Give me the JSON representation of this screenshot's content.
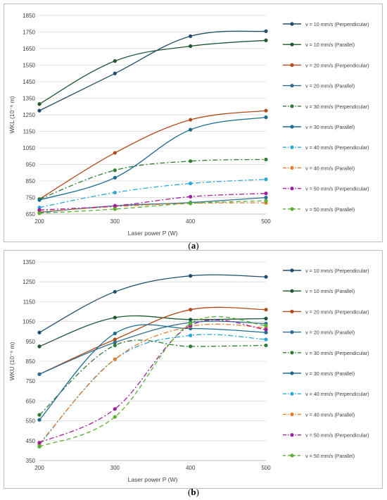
{
  "captions": {
    "a": "a",
    "b": "b"
  },
  "chart_data": [
    {
      "type": "line",
      "panel": "a",
      "title": "",
      "xlabel": "Laser power P (W)",
      "ylabel": "WKL (10⁻⁶ m)",
      "x": [
        200,
        300,
        400,
        500
      ],
      "xticks": [
        "200",
        "300",
        "400",
        "500"
      ],
      "ylim": [
        650,
        1850
      ],
      "yticks": [
        650,
        750,
        850,
        950,
        1050,
        1150,
        1250,
        1350,
        1450,
        1550,
        1650,
        1750,
        1850
      ],
      "legend_position": "right",
      "series": [
        {
          "name": "v = 10 mm/s (Perpendicular)",
          "values": [
            1275,
            1500,
            1725,
            1755
          ],
          "color": "#1f4e6b",
          "dash": "solid"
        },
        {
          "name": "v = 10 mm/s (Parallel)",
          "values": [
            1315,
            1575,
            1665,
            1700
          ],
          "color": "#1e5631",
          "dash": "solid"
        },
        {
          "name": "v = 20 mm/s (Perpendicular)",
          "values": [
            740,
            1020,
            1220,
            1275
          ],
          "color": "#b34a1b",
          "dash": "solid"
        },
        {
          "name": "v = 20 mm/s (Parallel)",
          "values": [
            660,
            700,
            720,
            750
          ],
          "color": "#2d6e8f",
          "dash": "solid"
        },
        {
          "name": "v = 30 mm/s (Perpendicular)",
          "values": [
            740,
            915,
            970,
            980
          ],
          "color": "#2e7d32",
          "dash": "dashdot"
        },
        {
          "name": "v = 30 mm/s (Parallel)",
          "values": [
            735,
            870,
            1160,
            1235
          ],
          "color": "#1b6c8f",
          "dash": "solid"
        },
        {
          "name": "v = 40 mm/s (Perpendicular)",
          "values": [
            690,
            780,
            835,
            860
          ],
          "color": "#2aa8d8",
          "dash": "dashdot"
        },
        {
          "name": "v = 40 mm/s (Parallel)",
          "values": [
            665,
            695,
            715,
            718
          ],
          "color": "#e87d2b",
          "dash": "dashdot"
        },
        {
          "name": "v = 50 mm/s (Perpendicular)",
          "values": [
            675,
            700,
            755,
            775
          ],
          "color": "#a020a0",
          "dash": "dashdot"
        },
        {
          "name": "v = 50 mm/s (Parallel)",
          "values": [
            655,
            680,
            715,
            730
          ],
          "color": "#58b030",
          "dash": "dash"
        }
      ]
    },
    {
      "type": "line",
      "panel": "b",
      "title": "",
      "xlabel": "Laser power P (W)",
      "ylabel": "WKU (10⁻⁶ m)",
      "x": [
        200,
        300,
        400,
        500
      ],
      "xticks": [
        "200",
        "300",
        "400",
        "500"
      ],
      "ylim": [
        350,
        1350
      ],
      "yticks": [
        350,
        450,
        550,
        650,
        750,
        850,
        950,
        1050,
        1150,
        1250,
        1350
      ],
      "legend_position": "right",
      "series": [
        {
          "name": "v = 10 mm/s (Perpendicular)",
          "values": [
            995,
            1200,
            1280,
            1275
          ],
          "color": "#1f4e6b",
          "dash": "solid"
        },
        {
          "name": "v = 10 mm/s (Parallel)",
          "values": [
            925,
            1070,
            1060,
            1065
          ],
          "color": "#1e5631",
          "dash": "solid"
        },
        {
          "name": "v = 20 mm/s (Perpendicular)",
          "values": [
            785,
            960,
            1110,
            1110
          ],
          "color": "#b34a1b",
          "dash": "solid"
        },
        {
          "name": "v = 20 mm/s (Parallel)",
          "values": [
            785,
            945,
            1045,
            1040
          ],
          "color": "#2d6e8f",
          "dash": "solid"
        },
        {
          "name": "v = 30 mm/s (Perpendicular)",
          "values": [
            580,
            930,
            925,
            930
          ],
          "color": "#2e7d32",
          "dash": "dashdot"
        },
        {
          "name": "v = 30 mm/s (Parallel)",
          "values": [
            555,
            990,
            1015,
            995
          ],
          "color": "#1b6c8f",
          "dash": "solid"
        },
        {
          "name": "v = 40 mm/s (Perpendicular)",
          "values": [
            430,
            860,
            980,
            960
          ],
          "color": "#2aa8d8",
          "dash": "dashdot"
        },
        {
          "name": "v = 40 mm/s (Parallel)",
          "values": [
            435,
            860,
            1025,
            1020
          ],
          "color": "#e87d2b",
          "dash": "dashdot"
        },
        {
          "name": "v = 50 mm/s (Perpendicular)",
          "values": [
            440,
            610,
            1030,
            1010
          ],
          "color": "#a020a0",
          "dash": "dashdot"
        },
        {
          "name": "v = 50 mm/s (Parallel)",
          "values": [
            420,
            570,
            1040,
            1030
          ],
          "color": "#58b030",
          "dash": "dash"
        }
      ]
    }
  ]
}
